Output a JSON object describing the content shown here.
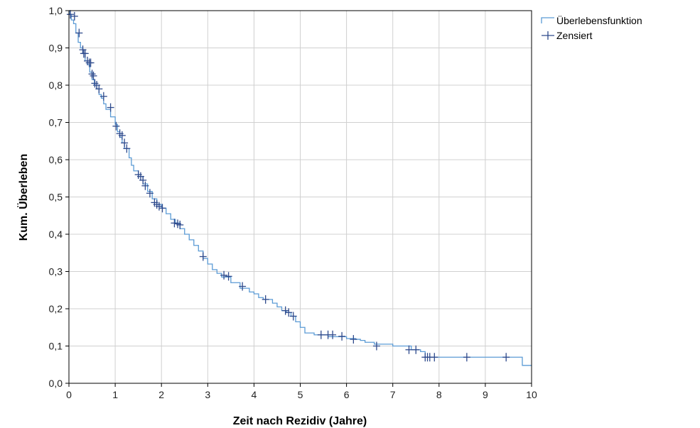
{
  "chart_data": {
    "type": "line",
    "title": "",
    "xlabel": "Zeit nach Rezidiv (Jahre)",
    "ylabel": "Kum. Überleben",
    "xlim": [
      0,
      10
    ],
    "ylim": [
      0,
      1
    ],
    "x_ticks": [
      0,
      1,
      2,
      3,
      4,
      5,
      6,
      7,
      8,
      9,
      10
    ],
    "x_tick_labels": [
      "0",
      "1",
      "2",
      "3",
      "4",
      "5",
      "6",
      "7",
      "8",
      "9",
      "10"
    ],
    "y_ticks": [
      0,
      0.1,
      0.2,
      0.3,
      0.4,
      0.5,
      0.6,
      0.7,
      0.8,
      0.9,
      1.0
    ],
    "y_tick_labels": [
      "0,0",
      "0,1",
      "0,2",
      "0,3",
      "0,4",
      "0,5",
      "0,6",
      "0,7",
      "0,8",
      "0,9",
      "1,0"
    ],
    "grid": true,
    "legend_position": "top-right, outside plot",
    "colors": {
      "survival": "#5b9bd5",
      "censor": "#2e4a8c",
      "grid": "#d0d0d0",
      "axis": "#000000"
    },
    "series": [
      {
        "name": "Überlebensfunktion",
        "kind": "step",
        "x": [
          0,
          0.02,
          0.05,
          0.1,
          0.15,
          0.2,
          0.25,
          0.3,
          0.35,
          0.4,
          0.45,
          0.5,
          0.55,
          0.6,
          0.65,
          0.7,
          0.75,
          0.8,
          0.9,
          1.0,
          1.05,
          1.1,
          1.15,
          1.2,
          1.3,
          1.35,
          1.4,
          1.5,
          1.6,
          1.7,
          1.8,
          1.9,
          2.0,
          2.1,
          2.2,
          2.3,
          2.4,
          2.5,
          2.6,
          2.7,
          2.8,
          2.9,
          3.0,
          3.1,
          3.2,
          3.3,
          3.5,
          3.7,
          3.9,
          4.0,
          4.1,
          4.2,
          4.4,
          4.5,
          4.6,
          4.7,
          4.8,
          4.9,
          5.0,
          5.1,
          5.3,
          5.6,
          6.0,
          6.2,
          6.3,
          6.4,
          6.6,
          7.0,
          7.4,
          7.6,
          7.7,
          9.8,
          10.0
        ],
        "y": [
          1.0,
          0.99,
          0.975,
          0.965,
          0.94,
          0.915,
          0.9,
          0.885,
          0.865,
          0.855,
          0.835,
          0.815,
          0.8,
          0.79,
          0.775,
          0.765,
          0.75,
          0.735,
          0.715,
          0.695,
          0.675,
          0.66,
          0.645,
          0.63,
          0.605,
          0.585,
          0.57,
          0.555,
          0.535,
          0.515,
          0.495,
          0.48,
          0.47,
          0.455,
          0.44,
          0.43,
          0.415,
          0.4,
          0.385,
          0.37,
          0.355,
          0.335,
          0.32,
          0.305,
          0.295,
          0.285,
          0.27,
          0.255,
          0.245,
          0.24,
          0.23,
          0.225,
          0.215,
          0.205,
          0.195,
          0.19,
          0.18,
          0.165,
          0.15,
          0.135,
          0.13,
          0.125,
          0.12,
          0.118,
          0.115,
          0.11,
          0.105,
          0.1,
          0.09,
          0.085,
          0.07,
          0.048,
          0.048
        ]
      },
      {
        "name": "Zensiert",
        "kind": "censor",
        "x": [
          0.03,
          0.12,
          0.22,
          0.3,
          0.32,
          0.35,
          0.4,
          0.44,
          0.47,
          0.5,
          0.53,
          0.56,
          0.6,
          0.65,
          0.75,
          0.9,
          1.02,
          1.1,
          1.15,
          1.2,
          1.25,
          1.5,
          1.55,
          1.6,
          1.65,
          1.75,
          1.85,
          1.9,
          1.95,
          2.02,
          2.28,
          2.35,
          2.4,
          2.9,
          3.35,
          3.45,
          3.75,
          4.25,
          4.68,
          4.75,
          4.85,
          5.45,
          5.6,
          5.7,
          5.9,
          6.15,
          6.65,
          7.35,
          7.5,
          7.7,
          7.75,
          7.8,
          7.9,
          8.6,
          9.45
        ],
        "y": [
          0.99,
          0.985,
          0.94,
          0.895,
          0.885,
          0.885,
          0.865,
          0.86,
          0.86,
          0.83,
          0.825,
          0.805,
          0.8,
          0.79,
          0.77,
          0.74,
          0.69,
          0.67,
          0.665,
          0.645,
          0.63,
          0.56,
          0.555,
          0.545,
          0.53,
          0.51,
          0.485,
          0.48,
          0.475,
          0.47,
          0.43,
          0.428,
          0.425,
          0.34,
          0.29,
          0.287,
          0.26,
          0.225,
          0.195,
          0.19,
          0.18,
          0.13,
          0.13,
          0.13,
          0.126,
          0.118,
          0.1,
          0.09,
          0.09,
          0.07,
          0.07,
          0.07,
          0.07,
          0.07,
          0.07
        ]
      }
    ]
  }
}
